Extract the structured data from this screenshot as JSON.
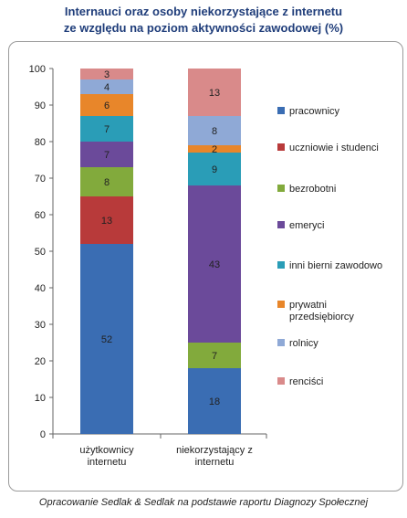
{
  "title_line1": "Internauci oraz osoby niekorzystające z internetu",
  "title_line2": "ze względu na poziom aktywności zawodowej (%)",
  "footer": "Opracowanie Sedlak & Sedlak na podstawie raportu Diagnozy Społecznej",
  "chart_data": {
    "type": "bar",
    "stacked": true,
    "title": "Internauci oraz osoby niekorzystające z internetu ze względu na poziom aktywności zawodowej (%)",
    "categories": [
      [
        "użytkownicy",
        "internetu"
      ],
      [
        "niekorzystający z",
        "internetu"
      ]
    ],
    "ylim": [
      0,
      100
    ],
    "yticks": [
      0,
      10,
      20,
      30,
      40,
      50,
      60,
      70,
      80,
      90,
      100
    ],
    "legend_position": "right",
    "series": [
      {
        "name": "pracownicy",
        "color": "#3a6db3",
        "values": [
          52,
          18
        ]
      },
      {
        "name": "uczniowie i studenci",
        "color": "#b83a3a",
        "values": [
          13,
          0
        ]
      },
      {
        "name": "bezrobotni",
        "color": "#82aa3c",
        "values": [
          8,
          7
        ]
      },
      {
        "name": "emeryci",
        "color": "#6b4a9a",
        "values": [
          7,
          43
        ]
      },
      {
        "name": "inni bierni zawodowo",
        "color": "#2a9db7",
        "values": [
          7,
          9
        ]
      },
      {
        "name": [
          "prywatni",
          "przedsiębiorcy"
        ],
        "color": "#e8862a",
        "values": [
          6,
          2
        ]
      },
      {
        "name": "rolnicy",
        "color": "#8fa9d6",
        "values": [
          4,
          8
        ]
      },
      {
        "name": "renciści",
        "color": "#d98a8a",
        "values": [
          3,
          13
        ]
      }
    ]
  }
}
